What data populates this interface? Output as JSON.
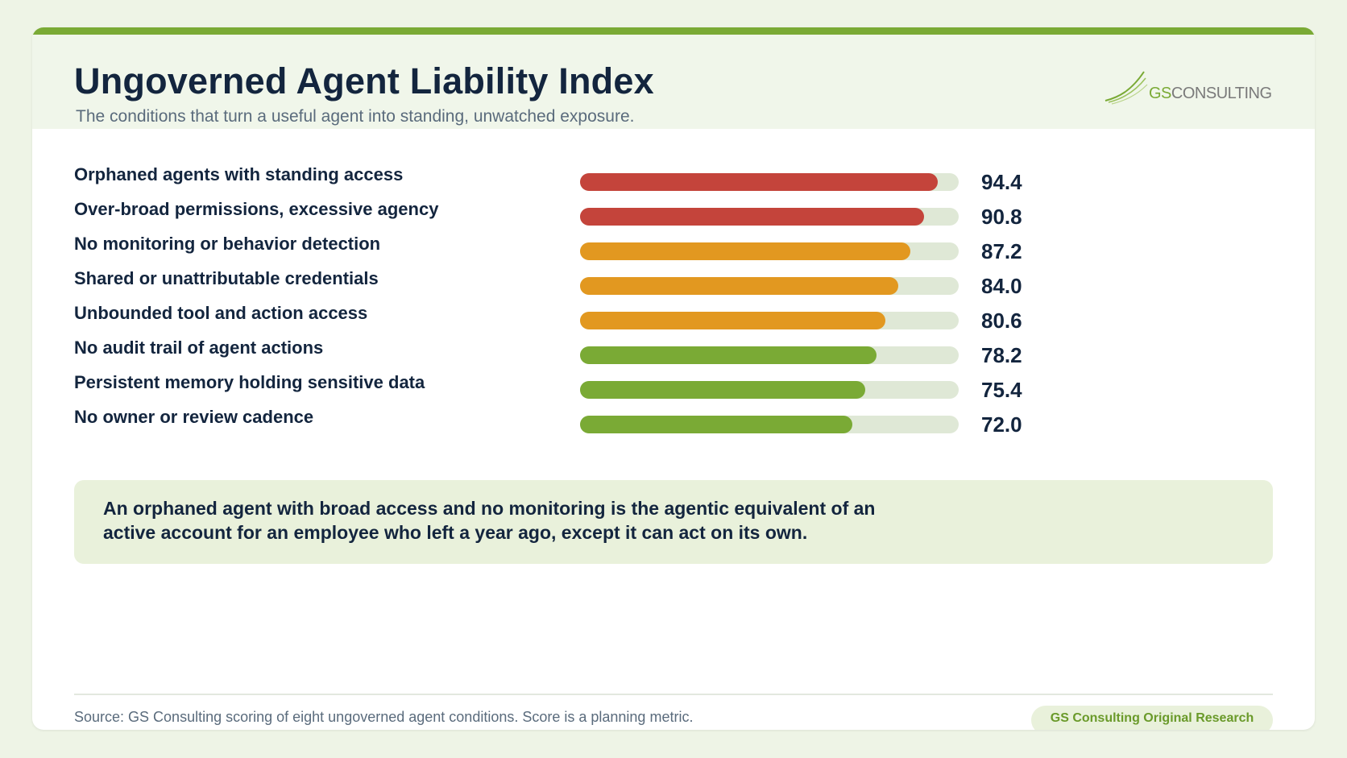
{
  "header": {
    "title": "Ungoverned Agent Liability Index",
    "subtitle": "The conditions that turn a useful agent into standing, unwatched exposure."
  },
  "logo": {
    "brand_accent": "GS",
    "brand_rest": "CONSULTING"
  },
  "colors": {
    "accent": "#7aaa35",
    "high": "#c4443b",
    "medium": "#e29820",
    "low": "#7aaa35",
    "track": "#dfe8d6",
    "text": "#13253e"
  },
  "chart_data": {
    "type": "bar",
    "orientation": "horizontal",
    "categories": [
      "Orphaned agents with standing access",
      "Over-broad permissions, excessive agency",
      "No monitoring or behavior detection",
      "Shared or unattributable credentials",
      "Unbounded tool and action access",
      "No audit trail of agent actions",
      "Persistent memory holding sensitive data",
      "No owner or review cadence"
    ],
    "values": [
      94.4,
      90.8,
      87.2,
      84.0,
      80.6,
      78.2,
      75.4,
      72.0
    ],
    "value_labels": [
      "94.4",
      "90.8",
      "87.2",
      "84.0",
      "80.6",
      "78.2",
      "75.4",
      "72.0"
    ],
    "bar_colors": [
      "#c4443b",
      "#c4443b",
      "#e29820",
      "#e29820",
      "#e29820",
      "#7aaa35",
      "#7aaa35",
      "#7aaa35"
    ],
    "xlim": [
      0,
      100
    ],
    "grid": false,
    "legend": "none"
  },
  "callout": {
    "text": "An orphaned agent with broad access and no monitoring is the agentic equivalent of an active account for an employee who left a year ago, except it can act on its own."
  },
  "footer": {
    "source": "Source: GS Consulting scoring of eight ungoverned agent conditions. Score is a planning metric.",
    "badge": "GS Consulting Original Research"
  }
}
